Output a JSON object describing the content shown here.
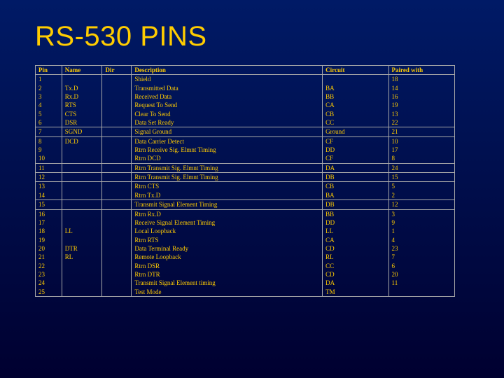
{
  "title": "RS-530 PINS",
  "columns": [
    "Pin",
    "Name",
    "Dir",
    "Description",
    "Circuit",
    "Paired with"
  ],
  "groups": [
    [
      {
        "pin": "1",
        "name": "",
        "dir": "",
        "desc": "Shield",
        "circ": "",
        "pair": "18"
      },
      {
        "pin": "2",
        "name": "Tx.D",
        "dir": "",
        "desc": "Transmitted Data",
        "circ": "BA",
        "pair": "14"
      },
      {
        "pin": "3",
        "name": "Rx.D",
        "dir": "",
        "desc": "Received Data",
        "circ": "BB",
        "pair": "16"
      },
      {
        "pin": "4",
        "name": "RTS",
        "dir": "",
        "desc": "Request To Send",
        "circ": "CA",
        "pair": "19"
      },
      {
        "pin": "5",
        "name": "CTS",
        "dir": "",
        "desc": "Clear To Send",
        "circ": "CB",
        "pair": "13"
      },
      {
        "pin": "6",
        "name": "DSR",
        "dir": "",
        "desc": "Data Set Ready",
        "circ": "CC",
        "pair": "22"
      }
    ],
    [
      {
        "pin": "7",
        "name": "SGND",
        "dir": "",
        "desc": "Signal Ground",
        "circ": "Ground",
        "pair": "21"
      }
    ],
    [
      {
        "pin": "8",
        "name": "DCD",
        "dir": "",
        "desc": "Data Carrier Detect",
        "circ": "CF",
        "pair": "10"
      },
      {
        "pin": "9",
        "name": "",
        "dir": "",
        "desc": "Rtrn Receive Sig. Elmnt Timing",
        "circ": "DD",
        "pair": "17"
      },
      {
        "pin": "10",
        "name": "",
        "dir": "",
        "desc": "Rtrn DCD",
        "circ": "CF",
        "pair": "8"
      }
    ],
    [
      {
        "pin": "11",
        "name": "",
        "dir": "",
        "desc": "Rtrn Transmit Sig. Elmnt Timing",
        "circ": "DA",
        "pair": "24"
      }
    ],
    [
      {
        "pin": "12",
        "name": "",
        "dir": "",
        "desc": "Rtrn Transmit Sig. Elmnt Timing",
        "circ": "DB",
        "pair": "15"
      }
    ],
    [
      {
        "pin": "13",
        "name": "",
        "dir": "",
        "desc": "Rtrn CTS",
        "circ": "CB",
        "pair": "5"
      },
      {
        "pin": "14",
        "name": "",
        "dir": "",
        "desc": "Rtrn Tx.D",
        "circ": "BA",
        "pair": "2"
      }
    ],
    [
      {
        "pin": "15",
        "name": "",
        "dir": "",
        "desc": "Transmit Signal Element Timing",
        "circ": "DB",
        "pair": "12"
      }
    ],
    [
      {
        "pin": "16",
        "name": "",
        "dir": "",
        "desc": "Rtrn Rx.D",
        "circ": "BB",
        "pair": "3"
      },
      {
        "pin": "17",
        "name": "",
        "dir": "",
        "desc": "Receive Signal Element Timing",
        "circ": "DD",
        "pair": "9"
      },
      {
        "pin": "18",
        "name": "LL",
        "dir": "",
        "desc": "Local Loopback",
        "circ": "LL",
        "pair": "1"
      },
      {
        "pin": "19",
        "name": "",
        "dir": "",
        "desc": "Rtrn RTS",
        "circ": "CA",
        "pair": "4"
      },
      {
        "pin": "20",
        "name": "DTR",
        "dir": "",
        "desc": "Data Terminal Ready",
        "circ": "CD",
        "pair": "23"
      },
      {
        "pin": "21",
        "name": "RL",
        "dir": "",
        "desc": "Remote Loopback",
        "circ": "RL",
        "pair": "7"
      },
      {
        "pin": "22",
        "name": "",
        "dir": "",
        "desc": "Rtrn DSR",
        "circ": "CC",
        "pair": "6"
      },
      {
        "pin": "23",
        "name": "",
        "dir": "",
        "desc": "Rtrn DTR",
        "circ": "CD",
        "pair": "20"
      },
      {
        "pin": "24",
        "name": "",
        "dir": "",
        "desc": "Transmit Signal Element timing",
        "circ": "DA",
        "pair": "11"
      },
      {
        "pin": "25",
        "name": "",
        "dir": "",
        "desc": "Test Mode",
        "circ": "TM",
        "pair": ""
      }
    ]
  ]
}
